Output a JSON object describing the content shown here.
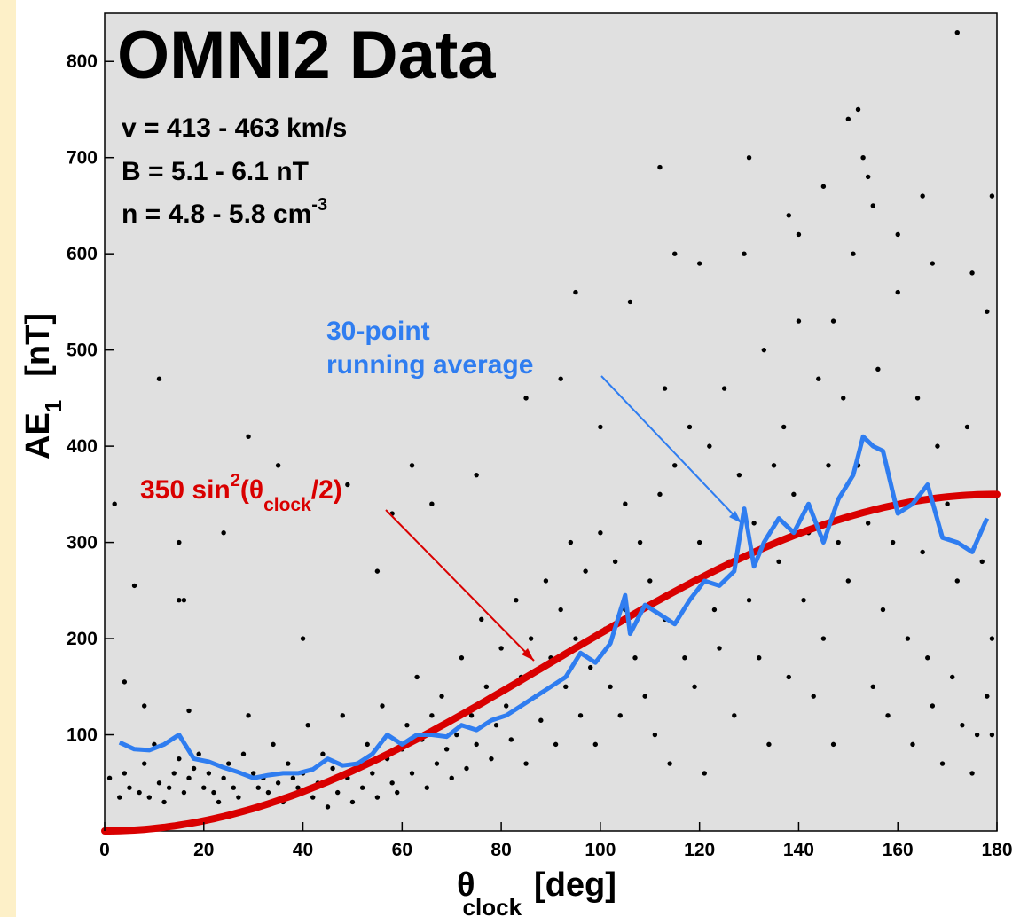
{
  "chart_data": {
    "type": "scatter",
    "title": "OMNI2 Data",
    "params": {
      "v_text": "v = 413 - 463 km/s",
      "b_text": "B = 5.1 - 6.1 nT",
      "n_text": "n = 4.8 - 5.8 cm",
      "n_sup": "-3"
    },
    "xlabel": {
      "symbol": "θ",
      "sub": "clock",
      "unit": "[deg]"
    },
    "ylabel": {
      "main": "AE",
      "sub": "1",
      "unit": "[nT]"
    },
    "xlim": [
      0,
      180
    ],
    "ylim": [
      0,
      850
    ],
    "xticks": [
      0,
      20,
      40,
      60,
      80,
      100,
      120,
      140,
      160,
      180
    ],
    "yticks": [
      100,
      200,
      300,
      400,
      500,
      600,
      700,
      800
    ],
    "xtick_labels": [
      "0",
      "20",
      "40",
      "60",
      "80",
      "100",
      "120",
      "140",
      "160",
      "180"
    ],
    "ytick_labels": [
      "100",
      "200",
      "300",
      "400",
      "500",
      "600",
      "700",
      "800"
    ],
    "grid": false,
    "colors": {
      "background": "#e0e0e0",
      "points": "#000000",
      "running_average": "#2f7df0",
      "fit_curve": "#d90000"
    },
    "fit": {
      "name_prefix": "350 sin",
      "sup": "2",
      "open": "(θ",
      "sub": "clock",
      "close": "/2)",
      "amplitude": 350
    },
    "running_average": {
      "label_line1": "30-point",
      "label_line2": "running average",
      "x": [
        3,
        6,
        9,
        12,
        15,
        18,
        21,
        24,
        27,
        30,
        33,
        36,
        39,
        42,
        45,
        48,
        51,
        54,
        57,
        60,
        63,
        66,
        69,
        72,
        75,
        78,
        81,
        84,
        87,
        90,
        93,
        96,
        99,
        102,
        105,
        106,
        109,
        112,
        115,
        118,
        121,
        124,
        127,
        129,
        131,
        133,
        136,
        139,
        142,
        145,
        148,
        151,
        153,
        155,
        157,
        160,
        163,
        166,
        169,
        172,
        175,
        178
      ],
      "y": [
        92,
        85,
        84,
        90,
        100,
        75,
        72,
        66,
        61,
        55,
        58,
        60,
        60,
        64,
        75,
        68,
        70,
        80,
        100,
        90,
        100,
        100,
        98,
        110,
        105,
        115,
        120,
        130,
        140,
        150,
        160,
        185,
        175,
        195,
        245,
        205,
        235,
        225,
        215,
        240,
        260,
        255,
        270,
        335,
        275,
        300,
        325,
        310,
        340,
        300,
        345,
        370,
        410,
        400,
        395,
        330,
        340,
        360,
        305,
        300,
        290,
        325
      ]
    },
    "points": {
      "x": [
        1,
        2,
        3,
        4,
        4,
        5,
        6,
        7,
        8,
        9,
        10,
        11,
        12,
        13,
        14,
        15,
        16,
        17,
        18,
        19,
        20,
        21,
        22,
        23,
        24,
        25,
        26,
        27,
        28,
        29,
        30,
        31,
        32,
        33,
        34,
        35,
        36,
        37,
        38,
        39,
        40,
        41,
        42,
        43,
        44,
        45,
        46,
        47,
        48,
        49,
        50,
        51,
        52,
        53,
        54,
        55,
        56,
        57,
        58,
        59,
        60,
        61,
        62,
        63,
        64,
        65,
        66,
        67,
        68,
        69,
        70,
        71,
        72,
        73,
        74,
        75,
        76,
        77,
        78,
        79,
        80,
        81,
        82,
        83,
        84,
        85,
        86,
        87,
        88,
        89,
        90,
        91,
        92,
        93,
        94,
        95,
        96,
        97,
        98,
        99,
        100,
        101,
        102,
        103,
        104,
        105,
        106,
        107,
        108,
        109,
        110,
        111,
        112,
        113,
        114,
        115,
        116,
        117,
        118,
        119,
        120,
        121,
        122,
        123,
        124,
        125,
        126,
        127,
        128,
        129,
        130,
        131,
        132,
        133,
        134,
        135,
        136,
        137,
        138,
        139,
        140,
        141,
        142,
        143,
        144,
        145,
        146,
        147,
        148,
        149,
        150,
        151,
        152,
        153,
        154,
        155,
        156,
        157,
        158,
        159,
        160,
        161,
        162,
        163,
        164,
        165,
        166,
        167,
        168,
        169,
        170,
        171,
        172,
        173,
        174,
        175,
        176,
        177,
        178,
        179,
        11,
        15,
        15,
        17,
        29,
        40,
        55,
        62,
        95,
        105,
        112,
        113,
        115,
        130,
        138,
        150,
        152,
        154,
        155,
        160,
        165,
        172,
        175,
        178,
        179,
        179,
        167,
        145,
        140,
        147,
        120,
        100,
        92,
        85,
        75,
        66,
        58,
        49,
        35,
        24,
        16,
        8
      ],
      "y": [
        55,
        340,
        35,
        155,
        60,
        45,
        255,
        40,
        70,
        35,
        90,
        50,
        30,
        45,
        60,
        75,
        40,
        55,
        65,
        80,
        45,
        60,
        40,
        30,
        55,
        70,
        45,
        35,
        80,
        120,
        60,
        45,
        55,
        40,
        90,
        50,
        30,
        70,
        55,
        45,
        60,
        110,
        35,
        50,
        80,
        25,
        65,
        40,
        120,
        55,
        30,
        70,
        45,
        90,
        60,
        35,
        130,
        75,
        50,
        40,
        85,
        110,
        60,
        160,
        95,
        45,
        120,
        70,
        140,
        85,
        55,
        100,
        180,
        65,
        120,
        90,
        220,
        150,
        75,
        110,
        190,
        130,
        95,
        240,
        160,
        70,
        200,
        140,
        115,
        260,
        180,
        90,
        230,
        150,
        300,
        200,
        120,
        270,
        170,
        90,
        310,
        210,
        150,
        280,
        120,
        230,
        550,
        180,
        300,
        140,
        260,
        100,
        350,
        220,
        70,
        380,
        250,
        180,
        420,
        150,
        300,
        60,
        400,
        230,
        190,
        460,
        280,
        120,
        370,
        600,
        240,
        320,
        180,
        500,
        90,
        380,
        280,
        420,
        160,
        350,
        530,
        240,
        310,
        140,
        470,
        200,
        380,
        90,
        300,
        450,
        260,
        600,
        380,
        700,
        320,
        150,
        480,
        230,
        120,
        300,
        560,
        340,
        200,
        90,
        450,
        290,
        180,
        130,
        400,
        70,
        340,
        160,
        260,
        110,
        420,
        60,
        100,
        280,
        140,
        200,
        470,
        300,
        240,
        125,
        410,
        200,
        270,
        380,
        560,
        340,
        690,
        460,
        600,
        700,
        640,
        740,
        750,
        680,
        650,
        620,
        660,
        830,
        580,
        540,
        100,
        660,
        590,
        670,
        620,
        530,
        590,
        420,
        470,
        450,
        370,
        340,
        330,
        360,
        380,
        310,
        240,
        130
      ]
    }
  }
}
